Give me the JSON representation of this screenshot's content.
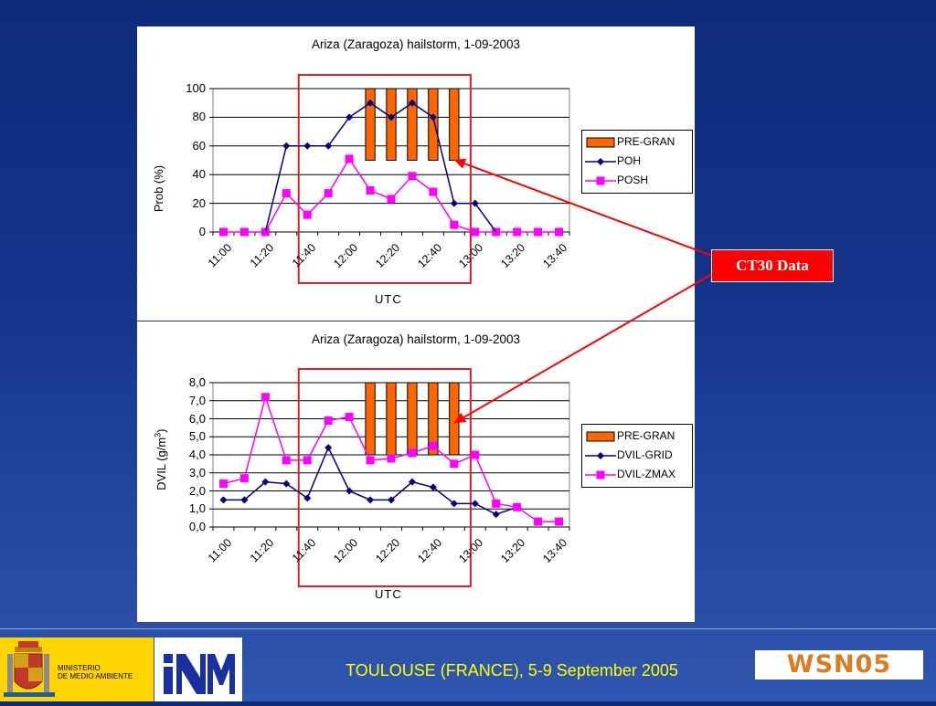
{
  "chart_data": [
    {
      "type": "line",
      "title": "Ariza (Zaragoza) hailstorm, 1-09-2003",
      "xlabel": "UTC",
      "ylabel": "Prob (%)",
      "ylim": [
        0,
        100
      ],
      "yticks": [
        "100",
        "80",
        "60",
        "40",
        "20",
        "0"
      ],
      "ytick_values": [
        100,
        80,
        60,
        40,
        20,
        0
      ],
      "x": [
        "11:00",
        "11:10",
        "11:20",
        "11:30",
        "11:40",
        "11:50",
        "12:00",
        "12:10",
        "12:20",
        "12:30",
        "12:40",
        "12:50",
        "13:00",
        "13:10",
        "13:20",
        "13:30",
        "13:40"
      ],
      "xtick_labels": [
        "11:00",
        "11:20",
        "11:40",
        "12:00",
        "12:20",
        "12:40",
        "13:00",
        "13:20",
        "13:40"
      ],
      "grid": true,
      "legend_position": "right",
      "highlight_range": [
        "11:40",
        "12:50"
      ],
      "bar_series": {
        "name": "PRE-GRAN",
        "color": "#ff6600",
        "x_indices": [
          7,
          8,
          9,
          10,
          11
        ],
        "bottom": 50,
        "top": 100
      },
      "series": [
        {
          "name": "POH",
          "color": "#000080",
          "marker": "diamond",
          "values": [
            null,
            null,
            null,
            60,
            60,
            60,
            80,
            90,
            80,
            90,
            80,
            20,
            20,
            null,
            null,
            null,
            null
          ]
        },
        {
          "name": "POSH",
          "color": "#ff00ff",
          "marker": "square",
          "values": [
            0,
            0,
            0,
            27,
            12,
            27,
            51,
            29,
            23,
            39,
            28,
            5,
            0,
            0,
            0,
            0,
            0
          ]
        }
      ],
      "poh_extra_segments": [
        [
          [
            2,
            0
          ],
          [
            3,
            60
          ]
        ],
        [
          [
            12,
            20
          ],
          [
            13,
            0
          ]
        ]
      ]
    },
    {
      "type": "line",
      "title": "Ariza (Zaragoza) hailstorm, 1-09-2003",
      "xlabel": "UTC",
      "ylabel": "DVIL (g/m",
      "ylabel_sup": "3",
      "ylabel_suffix": ")",
      "ylim": [
        0,
        8
      ],
      "yticks": [
        "8,0",
        "7,0",
        "6,0",
        "5,0",
        "4,0",
        "3,0",
        "2,0",
        "1,0",
        "0,0"
      ],
      "ytick_values": [
        8,
        7,
        6,
        5,
        4,
        3,
        2,
        1,
        0
      ],
      "x": [
        "11:00",
        "11:10",
        "11:20",
        "11:30",
        "11:40",
        "11:50",
        "12:00",
        "12:10",
        "12:20",
        "12:30",
        "12:40",
        "12:50",
        "13:00",
        "13:10",
        "13:20",
        "13:30",
        "13:40"
      ],
      "xtick_labels": [
        "11:00",
        "11:20",
        "11:40",
        "12:00",
        "12:20",
        "12:40",
        "13:00",
        "13:20",
        "13:40"
      ],
      "grid": true,
      "legend_position": "right",
      "highlight_range": [
        "11:40",
        "12:50"
      ],
      "bar_series": {
        "name": "PRE-GRAN",
        "color": "#ff6600",
        "x_indices": [
          7,
          8,
          9,
          10,
          11
        ],
        "bottom": 4,
        "top": 8
      },
      "series": [
        {
          "name": "DVIL-GRID",
          "color": "#000080",
          "marker": "diamond",
          "values": [
            1.5,
            1.5,
            2.5,
            2.4,
            1.6,
            4.4,
            2.0,
            1.5,
            1.5,
            2.5,
            2.2,
            1.3,
            1.3,
            0.7,
            1.1,
            null,
            null
          ]
        },
        {
          "name": "DVIL-ZMAX",
          "color": "#ff00ff",
          "marker": "square",
          "values": [
            2.4,
            2.7,
            7.2,
            3.7,
            3.7,
            5.9,
            6.1,
            3.7,
            3.8,
            4.1,
            4.5,
            3.5,
            4.0,
            1.3,
            1.1,
            0.3,
            0.3
          ]
        }
      ]
    }
  ],
  "annotation": {
    "label": "CT30 Data",
    "color": "#ff0000"
  },
  "footer": {
    "ministry_line1": "MINISTERIO",
    "ministry_line2": "DE MEDIO AMBIENTE",
    "caption": "TOULOUSE (FRANCE), 5-9 September 2005",
    "wsn_logo": "WSN05"
  },
  "colors": {
    "caption": "#ffff00",
    "ministry_bg": "#ffd400",
    "inm_blue": "#1a2fa0",
    "wsn_orange": "#d97d1f"
  }
}
